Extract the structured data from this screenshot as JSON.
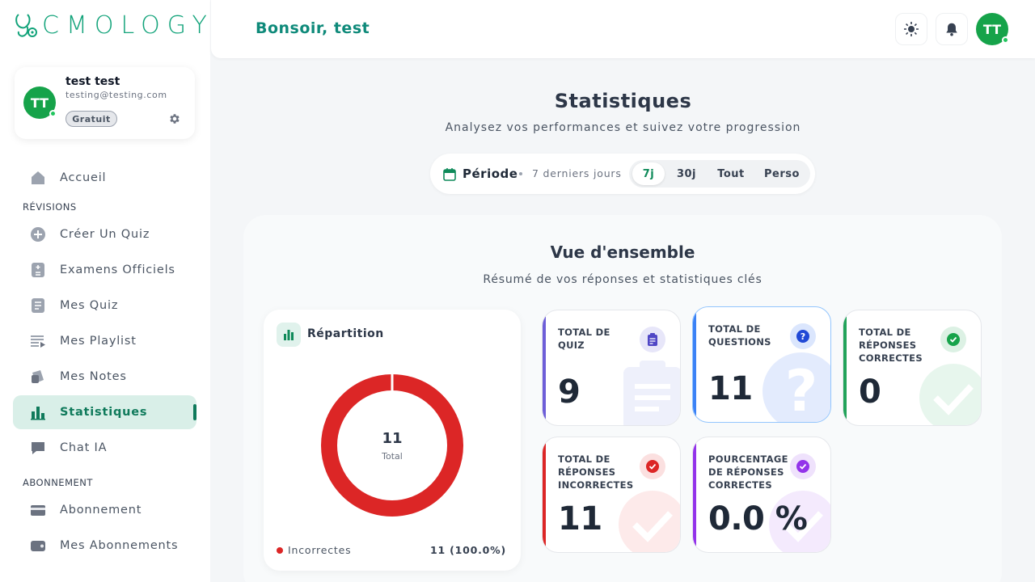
{
  "brand": {
    "logo_text": "CMOLOGY",
    "accent": "#12a37a"
  },
  "profile": {
    "name": "test test",
    "email": "testing@testing.com",
    "plan": "Gratuit",
    "initials": "TT"
  },
  "nav": {
    "home": "Accueil",
    "section_revisions": "RÉVISIONS",
    "create_quiz": "Créer Un Quiz",
    "official_exams": "Examens Officiels",
    "my_quizzes": "Mes Quiz",
    "my_playlists": "Mes Playlist",
    "my_notes": "Mes Notes",
    "statistics": "Statistiques",
    "chat": "Chat IA",
    "section_subscription": "ABONNEMENT",
    "subscription": "Abonnement",
    "my_subscriptions": "Mes Abonnements"
  },
  "header": {
    "greeting": "Bonsoir, test",
    "avatar_initials": "TT"
  },
  "page": {
    "title": "Statistiques",
    "subtitle": "Analysez vos performances et suivez votre progression"
  },
  "period": {
    "label": "Période",
    "range": "7 derniers jours",
    "options": [
      "7j",
      "30j",
      "Tout",
      "Perso"
    ],
    "selected": "7j"
  },
  "overview": {
    "title": "Vue d'ensemble",
    "subtitle": "Résumé de vos réponses et statistiques clés"
  },
  "repartition": {
    "title": "Répartition",
    "total_value": "11",
    "total_label": "Total",
    "legend_label": "Incorrectes",
    "legend_value": "11 (100.0%)",
    "incorrect_fraction": 1.0,
    "color": "#dc2626"
  },
  "stats": [
    {
      "title": "TOTAL DE QUIZ",
      "value": "9",
      "color": "#6d5ed8"
    },
    {
      "title": "TOTAL DE QUESTIONS",
      "value": "11",
      "color": "#3b82f6"
    },
    {
      "title": "TOTAL DE RÉPONSES CORRECTES",
      "value": "0",
      "color": "#22a35a"
    },
    {
      "title": "TOTAL DE RÉPONSES INCORRECTES",
      "value": "11",
      "color": "#dc2626"
    },
    {
      "title": "POURCENTAGE DE RÉPONSES CORRECTES",
      "value": "0.0 %",
      "color": "#9333ea"
    }
  ]
}
